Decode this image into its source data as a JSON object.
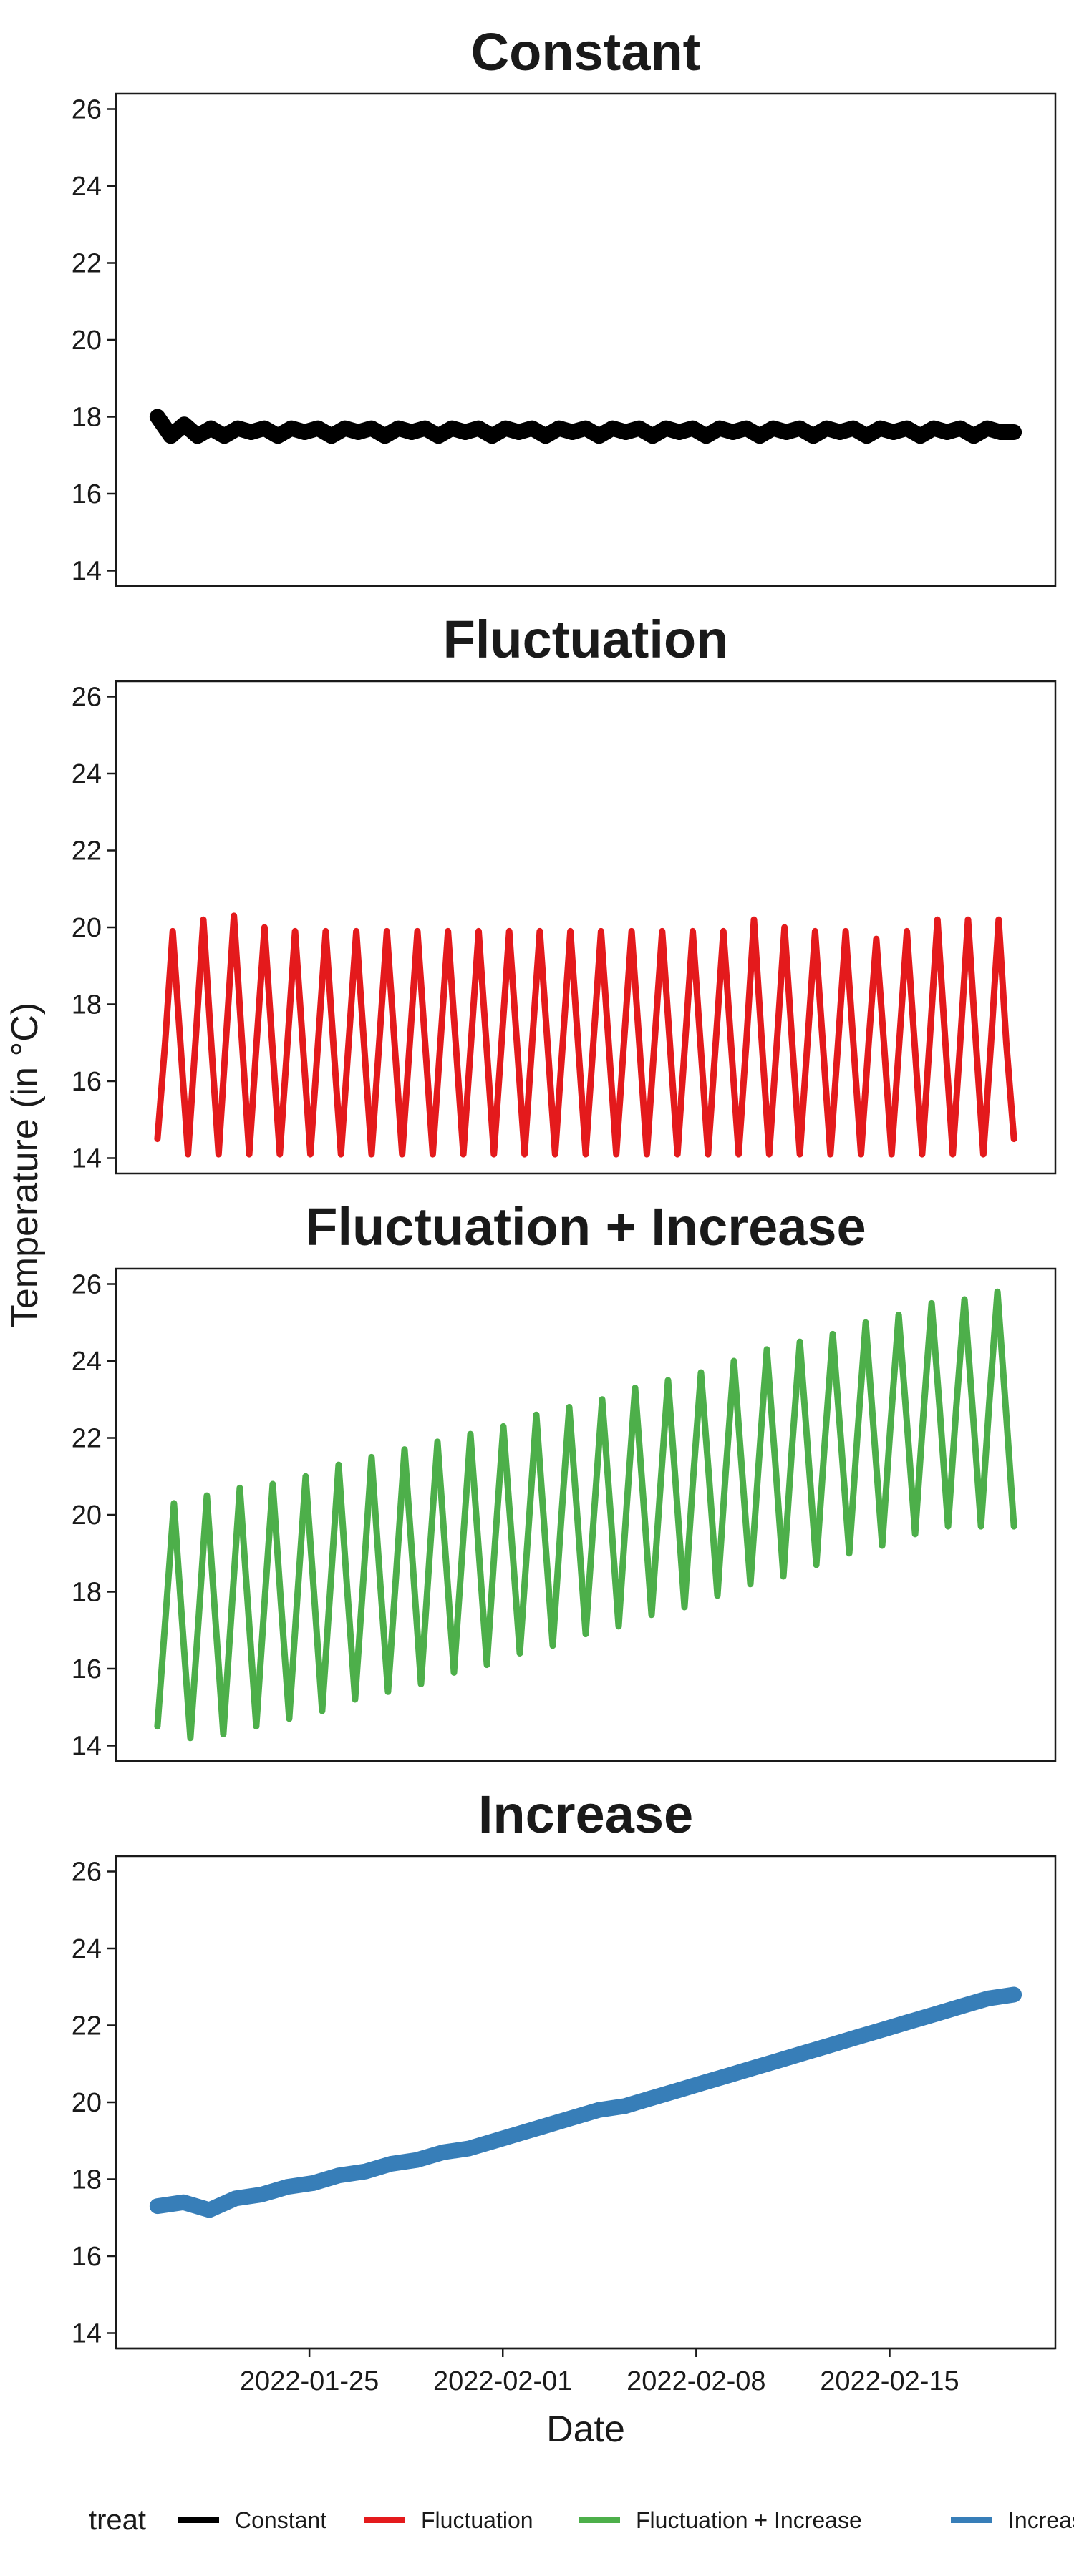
{
  "chart_data": {
    "type": "line",
    "ylabel": "Temperature (in °C)",
    "xlabel": "Date",
    "y_range": [
      13.6,
      26.4
    ],
    "y_ticks": [
      14,
      16,
      18,
      20,
      22,
      24,
      26
    ],
    "x_range": [
      "2022-01-18",
      "2022-02-21"
    ],
    "x_ticks": [
      "2022-01-25",
      "2022-02-01",
      "2022-02-08",
      "2022-02-15"
    ],
    "date_start": "2022-01-19T12:00",
    "date_end": "2022-02-19T12:00",
    "legend_title": "treat",
    "legend_position": "bottom",
    "grid": false,
    "panels": [
      {
        "title": "Constant",
        "series": "Constant",
        "color": "#000000",
        "values": [
          18.0,
          17.5,
          17.8,
          17.5,
          17.7,
          17.5,
          17.7,
          17.6,
          17.7,
          17.5,
          17.7,
          17.6,
          17.7,
          17.5,
          17.7,
          17.6,
          17.7,
          17.5,
          17.7,
          17.6,
          17.7,
          17.5,
          17.7,
          17.6,
          17.7,
          17.5,
          17.7,
          17.6,
          17.7,
          17.5,
          17.7,
          17.6,
          17.7,
          17.5,
          17.7,
          17.6,
          17.7,
          17.5,
          17.7,
          17.6,
          17.7,
          17.5,
          17.7,
          17.6,
          17.7,
          17.5,
          17.7,
          17.6,
          17.7,
          17.5,
          17.7,
          17.6,
          17.7,
          17.5,
          17.7,
          17.6,
          17.7,
          17.5,
          17.7,
          17.6,
          17.7,
          17.5,
          17.7,
          17.6,
          17.6
        ]
      },
      {
        "title": "Fluctuation",
        "series": "Fluctuation",
        "color": "#e41a1c",
        "values": [
          14.5,
          17.0,
          19.9,
          17.0,
          14.1,
          17.1,
          20.2,
          17.1,
          14.1,
          17.2,
          20.3,
          17.2,
          14.1,
          17.1,
          20.0,
          17.0,
          14.1,
          17.0,
          19.9,
          17.0,
          14.1,
          17.0,
          19.9,
          17.0,
          14.1,
          17.0,
          19.9,
          17.0,
          14.1,
          17.0,
          19.9,
          17.0,
          14.1,
          17.0,
          19.9,
          17.0,
          14.1,
          17.0,
          19.9,
          17.0,
          14.1,
          17.0,
          19.9,
          17.0,
          14.1,
          17.0,
          19.9,
          17.0,
          14.1,
          17.0,
          19.9,
          17.0,
          14.1,
          17.0,
          19.9,
          17.0,
          14.1,
          17.0,
          19.9,
          17.0,
          14.1,
          17.0,
          19.9,
          17.0,
          14.1,
          17.0,
          19.9,
          17.0,
          14.1,
          17.0,
          19.9,
          17.0,
          14.1,
          17.0,
          19.9,
          17.0,
          14.1,
          17.0,
          20.2,
          17.1,
          14.1,
          17.0,
          20.0,
          17.0,
          14.1,
          17.0,
          19.9,
          17.0,
          14.1,
          17.0,
          19.9,
          17.0,
          14.1,
          17.0,
          19.7,
          17.0,
          14.1,
          17.0,
          19.9,
          17.0,
          14.1,
          17.1,
          20.2,
          17.1,
          14.1,
          17.1,
          20.2,
          17.1,
          14.1,
          17.0,
          20.2,
          17.0,
          14.5
        ]
      },
      {
        "title": "Fluctuation + Increase",
        "series": "Fluctuation + Increase",
        "color": "#4daf4a",
        "values": [
          14.5,
          17.4,
          20.3,
          17.2,
          14.2,
          17.3,
          20.5,
          17.4,
          14.3,
          17.5,
          20.7,
          17.6,
          14.5,
          17.7,
          20.8,
          17.7,
          14.7,
          17.9,
          21.0,
          18.0,
          14.9,
          18.1,
          21.3,
          18.2,
          15.2,
          18.3,
          21.5,
          18.4,
          15.4,
          18.5,
          21.7,
          18.7,
          15.6,
          18.8,
          21.9,
          18.9,
          15.9,
          19.0,
          22.1,
          19.1,
          16.1,
          19.3,
          22.3,
          19.4,
          16.4,
          19.5,
          22.6,
          19.6,
          16.6,
          19.8,
          22.8,
          19.9,
          16.9,
          20.0,
          23.0,
          20.1,
          17.1,
          20.3,
          23.3,
          20.4,
          17.4,
          20.5,
          23.5,
          20.6,
          17.6,
          20.8,
          23.7,
          20.9,
          17.9,
          21.1,
          24.0,
          21.1,
          18.2,
          21.3,
          24.3,
          21.4,
          18.4,
          21.6,
          24.5,
          21.6,
          18.7,
          21.8,
          24.7,
          21.9,
          19.0,
          22.1,
          25.0,
          22.1,
          19.2,
          22.3,
          25.2,
          22.4,
          19.5,
          22.6,
          25.5,
          22.7,
          19.7,
          22.8,
          25.6,
          22.7,
          19.7,
          22.9,
          25.8,
          22.8,
          19.7
        ]
      },
      {
        "title": "Increase",
        "series": "Increase",
        "color": "#377eb8",
        "values": [
          17.3,
          17.4,
          17.2,
          17.5,
          17.6,
          17.8,
          17.9,
          18.1,
          18.2,
          18.4,
          18.5,
          18.7,
          18.8,
          19.0,
          19.2,
          19.4,
          19.6,
          19.8,
          19.9,
          20.1,
          20.3,
          20.5,
          20.7,
          20.9,
          21.1,
          21.3,
          21.5,
          21.7,
          21.9,
          22.1,
          22.3,
          22.5,
          22.7,
          22.8
        ]
      }
    ]
  }
}
